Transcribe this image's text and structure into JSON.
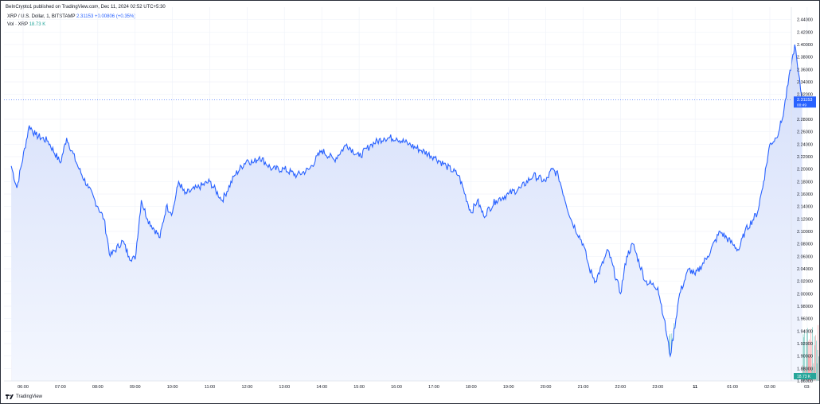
{
  "header": {
    "published": "BeInCrypto1 published on TradingView.com, Dec 11, 2024 02:52 UTC+5:30"
  },
  "legend": {
    "symbol": "XRP / U.S. Dollar, 1, BITSTAMP",
    "last": "2.31153",
    "change": "+0.00806 (+0.35%)",
    "vol_label": "Vol · XRP",
    "vol_value": "18.73 K"
  },
  "price_badge": {
    "value": "2.31153",
    "countdown": "00:49"
  },
  "volume_badge": "18.73 K",
  "footer": {
    "brand": "TradingView"
  },
  "colors": {
    "line": "#2962ff",
    "area_top": "#d4defa",
    "area_bottom": "#f4f7fe",
    "badge": "#2962ff",
    "vol_up": "#80cbc4",
    "vol_down": "#f4a3a8"
  },
  "chart_data": {
    "type": "area",
    "series": [
      {
        "name": "XRP / U.S. Dollar, 1, BITSTAMP",
        "x": [
          "05:41",
          "05:50",
          "06:10",
          "06:20",
          "06:40",
          "07:00",
          "07:10",
          "07:30",
          "07:45",
          "08:00",
          "08:10",
          "08:20",
          "08:40",
          "08:50",
          "09:00",
          "09:10",
          "09:20",
          "09:40",
          "09:50",
          "10:00",
          "10:10",
          "10:20",
          "10:40",
          "11:00",
          "11:20",
          "11:40",
          "12:00",
          "12:10",
          "12:20",
          "12:40",
          "13:00",
          "13:20",
          "13:40",
          "14:00",
          "14:20",
          "14:40",
          "15:00",
          "15:20",
          "15:40",
          "16:00",
          "16:20",
          "16:40",
          "17:00",
          "17:20",
          "17:40",
          "18:00",
          "18:10",
          "18:20",
          "18:40",
          "19:00",
          "19:20",
          "19:40",
          "20:00",
          "20:10",
          "20:20",
          "20:40",
          "21:00",
          "21:10",
          "21:20",
          "21:40",
          "22:00",
          "22:10",
          "22:20",
          "22:40",
          "23:00",
          "23:10",
          "23:20",
          "23:35",
          "23:50",
          "00:00",
          "00:20",
          "00:40",
          "01:00",
          "01:10",
          "01:20",
          "01:40",
          "01:50",
          "02:00",
          "02:10",
          "02:20",
          "02:40",
          "02:45",
          "02:52"
        ],
        "y": [
          2.205,
          2.17,
          2.27,
          2.255,
          2.245,
          2.21,
          2.25,
          2.2,
          2.17,
          2.14,
          2.12,
          2.06,
          2.085,
          2.06,
          2.055,
          2.15,
          2.12,
          2.09,
          2.14,
          2.13,
          2.18,
          2.16,
          2.17,
          2.18,
          2.15,
          2.19,
          2.215,
          2.21,
          2.22,
          2.2,
          2.2,
          2.19,
          2.2,
          2.23,
          2.215,
          2.24,
          2.22,
          2.24,
          2.25,
          2.25,
          2.24,
          2.23,
          2.22,
          2.205,
          2.19,
          2.13,
          2.15,
          2.125,
          2.15,
          2.16,
          2.17,
          2.19,
          2.18,
          2.2,
          2.19,
          2.12,
          2.08,
          2.04,
          2.02,
          2.07,
          2.0,
          2.06,
          2.08,
          2.02,
          2.01,
          1.96,
          1.9,
          2.0,
          2.04,
          2.03,
          2.06,
          2.1,
          2.08,
          2.07,
          2.1,
          2.13,
          2.18,
          2.24,
          2.25,
          2.28,
          2.4,
          2.36,
          2.31
        ]
      }
    ],
    "y_ticks": [
      "2.44000",
      "2.42000",
      "2.40000",
      "2.38000",
      "2.36000",
      "2.34000",
      "2.32000",
      "2.28000",
      "2.26000",
      "2.24000",
      "2.22000",
      "2.20000",
      "2.18000",
      "2.16000",
      "2.14000",
      "2.12000",
      "2.10000",
      "2.08000",
      "2.06000",
      "2.04000",
      "2.02000",
      "2.00000",
      "1.98000",
      "1.96000",
      "1.94000",
      "1.92000",
      "1.90000",
      "1.88000",
      "1.86000"
    ],
    "x_ticks": [
      "06:00",
      "07:00",
      "08:00",
      "09:00",
      "10:00",
      "11:00",
      "12:00",
      "13:00",
      "14:00",
      "15:00",
      "16:00",
      "17:00",
      "18:00",
      "19:00",
      "20:00",
      "21:00",
      "22:00",
      "23:00",
      "11",
      "01:00",
      "02:00",
      "03:"
    ],
    "ylim": [
      1.86,
      2.46
    ],
    "last_price": 2.31153,
    "volume": {
      "x": [
        "05:45",
        "06:30",
        "07:15",
        "08:00",
        "08:45",
        "09:30",
        "10:15",
        "11:00",
        "11:45",
        "12:30",
        "13:15",
        "14:00",
        "14:45",
        "15:30",
        "16:15",
        "17:00",
        "17:45",
        "18:30",
        "19:15",
        "20:00",
        "20:45",
        "21:15",
        "21:45",
        "22:15",
        "22:45",
        "23:15",
        "23:35",
        "23:55",
        "00:20",
        "00:45",
        "01:10",
        "01:30",
        "01:50",
        "02:10",
        "02:30",
        "02:45"
      ],
      "values": [
        5,
        6,
        7,
        4,
        5,
        6,
        4,
        4,
        3,
        5,
        4,
        3,
        4,
        5,
        5,
        3,
        3,
        3,
        4,
        5,
        6,
        9,
        12,
        14,
        12,
        16,
        22,
        14,
        12,
        15,
        10,
        14,
        20,
        26,
        22,
        18
      ]
    },
    "grid": true
  }
}
